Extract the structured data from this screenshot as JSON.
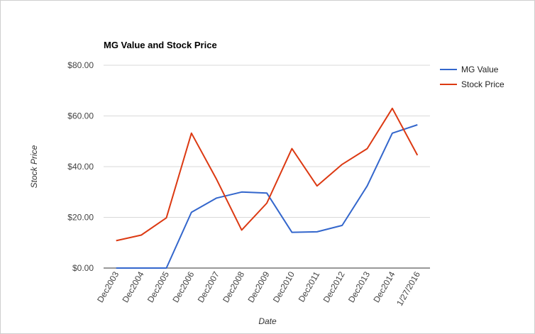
{
  "chart_data": {
    "type": "line",
    "title": "MG Value and Stock Price",
    "xlabel": "Date",
    "ylabel": "Stock Price",
    "ylim": [
      0,
      80
    ],
    "yticks": [
      0,
      20,
      40,
      60,
      80
    ],
    "ytick_labels": [
      "$0.00",
      "$20.00",
      "$40.00",
      "$60.00",
      "$80.00"
    ],
    "categories": [
      "Dec2003",
      "Dec2004",
      "Dec2005",
      "Dec2006",
      "Dec2007",
      "Dec2008",
      "Dec2009",
      "Dec2010",
      "Dec2011",
      "Dec2012",
      "Dec2013",
      "Dec2014",
      "1/27/2016"
    ],
    "legend_position": "right",
    "grid": true,
    "series": [
      {
        "name": "MG Value",
        "color": "#3366cc",
        "values": [
          0,
          0,
          0,
          22.0,
          27.6,
          30.0,
          29.6,
          14.1,
          14.3,
          16.8,
          32.4,
          53.2,
          56.5
        ]
      },
      {
        "name": "Stock Price",
        "color": "#dc3912",
        "values": [
          10.8,
          13.0,
          19.8,
          53.2,
          35.0,
          15.0,
          25.6,
          47.1,
          32.4,
          40.9,
          47.1,
          63.0,
          44.5
        ]
      }
    ]
  }
}
